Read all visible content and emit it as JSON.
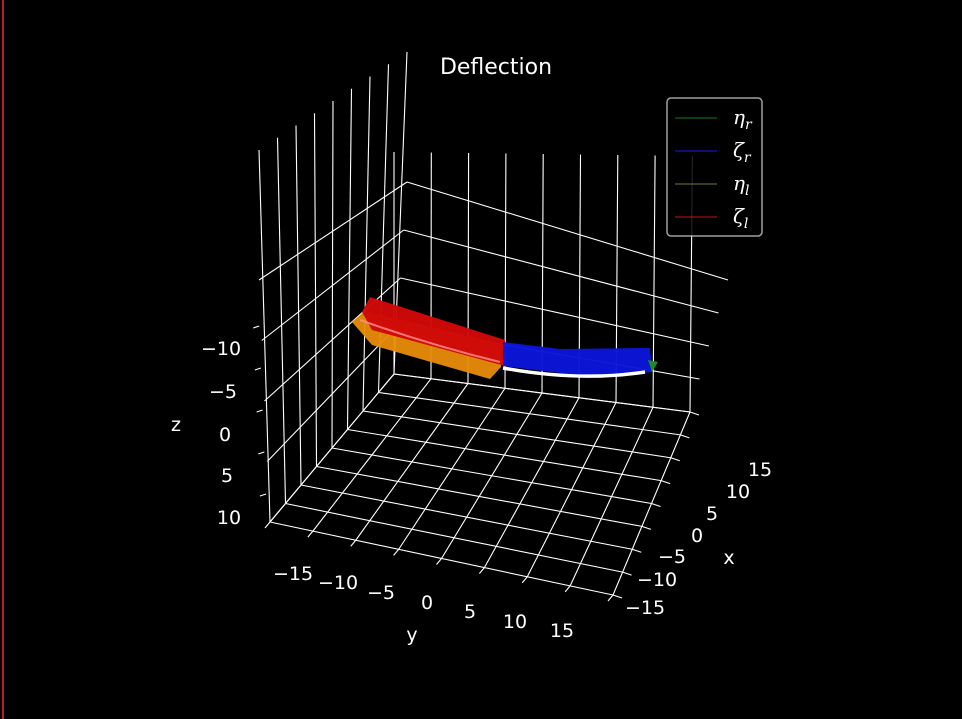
{
  "chart_data": {
    "type": "surface3d",
    "title": "Deflection",
    "xlabel": "x",
    "ylabel": "y",
    "zlabel": "z",
    "x_ticks": [
      "15",
      "10",
      "5",
      "0",
      "−5",
      "−10",
      "−15"
    ],
    "y_ticks": [
      "−15",
      "−10",
      "−5",
      "0",
      "5",
      "10",
      "15"
    ],
    "z_ticks": [
      "−10",
      "−5",
      "0",
      "5",
      "10"
    ],
    "legend": {
      "placement": "top-right",
      "entries": [
        {
          "label": "ηr",
          "base": "η",
          "sub": "r",
          "color": "#1a7a1a"
        },
        {
          "label": "ζr",
          "base": "ζ",
          "sub": "r",
          "color": "#1a1aee"
        },
        {
          "label": "ηl",
          "base": "η",
          "sub": "l",
          "color": "#7a7a3a"
        },
        {
          "label": "ζl",
          "base": "ζ",
          "sub": "l",
          "color": "#cc1111"
        }
      ]
    },
    "series_colors": {
      "zeta_r": "#0b16d8",
      "eta_r": "#1a8a2a",
      "zeta_l": "#d00808",
      "eta_l": "#e88c0a",
      "centerline": "#ffffff"
    },
    "grid": true,
    "background": "#000000",
    "foreground": "#ffffff"
  }
}
